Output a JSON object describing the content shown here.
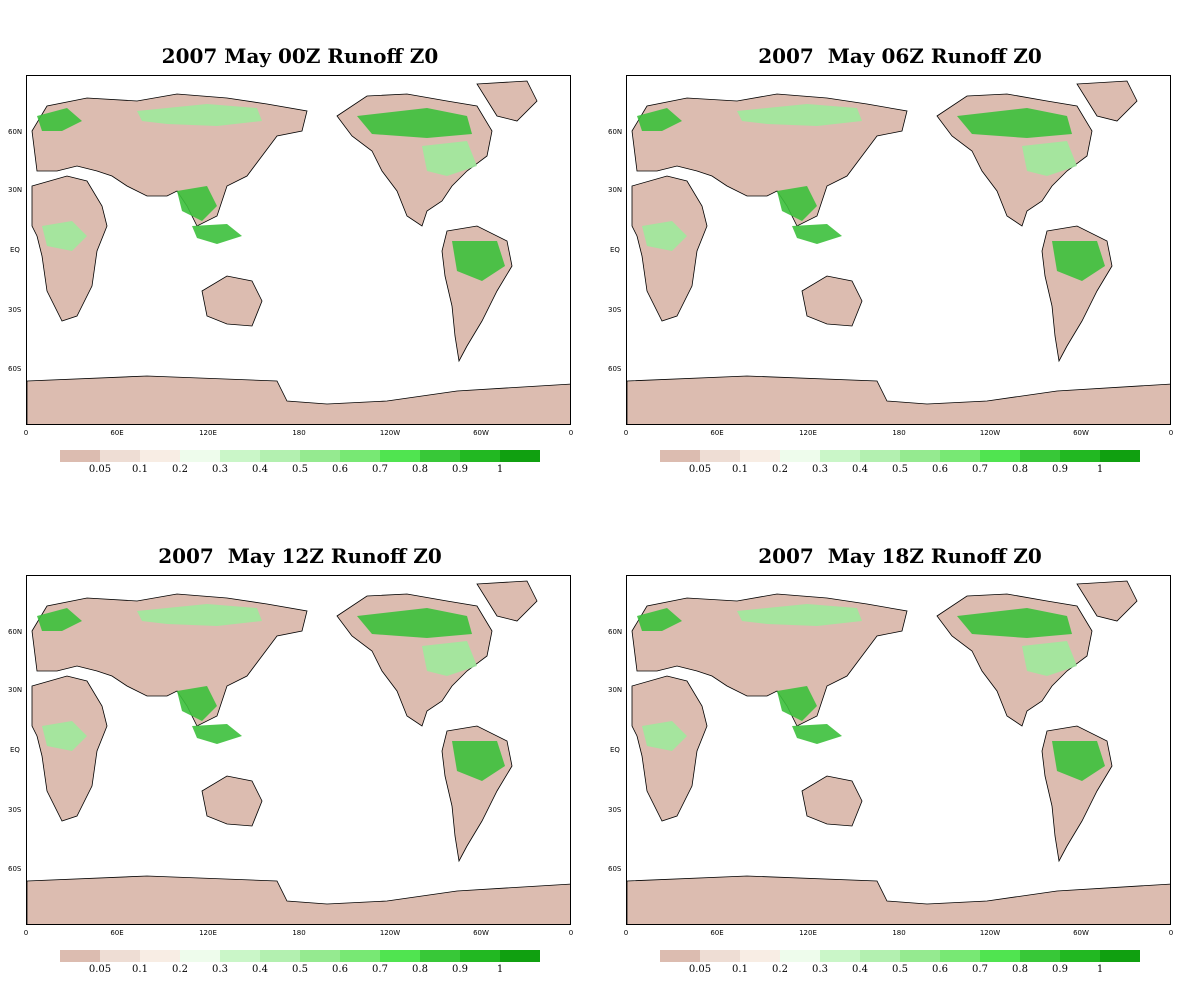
{
  "panels": [
    {
      "title": "2007 May 00Z Runoff Z0"
    },
    {
      "title": "2007  May 06Z Runoff Z0"
    },
    {
      "title": "2007  May 12Z Runoff Z0"
    },
    {
      "title": "2007  May 18Z Runoff Z0"
    }
  ],
  "lat_labels": [
    "60N",
    "30N",
    "EQ",
    "30S",
    "60S"
  ],
  "lon_labels": [
    "0",
    "60E",
    "120E",
    "180",
    "120W",
    "60W",
    "0"
  ],
  "colorbar": {
    "colors": [
      "#dcbcb0",
      "#eeddd4",
      "#f8ede4",
      "#eefcec",
      "#caf6c8",
      "#b3f0b0",
      "#95ea90",
      "#78e874",
      "#50e450",
      "#38c838",
      "#22b822",
      "#10a010"
    ],
    "labels": [
      "0.05",
      "0.1",
      "0.2",
      "0.3",
      "0.4",
      "0.5",
      "0.6",
      "0.7",
      "0.8",
      "0.9",
      "1"
    ]
  },
  "map_colors": {
    "land_dry": "#dcbcb0",
    "wet": "#3cc03c",
    "moderate": "#9fe99c",
    "coast": "#000000",
    "ocean": "#ffffff"
  }
}
